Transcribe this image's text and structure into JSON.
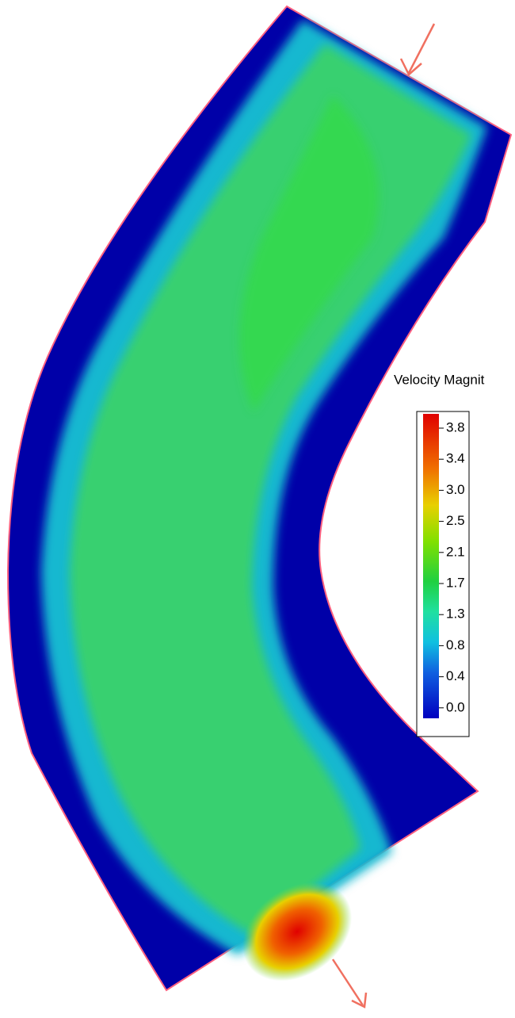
{
  "legend": {
    "title": "Velocity Magnit",
    "ticks": [
      "3.8",
      "3.4",
      "3.0",
      "2.5",
      "2.1",
      "1.7",
      "1.3",
      "0.8",
      "0.4",
      "0.0"
    ]
  }
}
